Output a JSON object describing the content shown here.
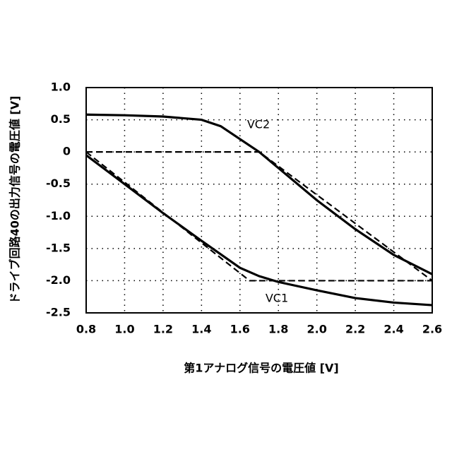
{
  "chart_data": {
    "type": "line",
    "x_label": "第1アナログ信号の電圧値 [V]",
    "y_label": "ドライブ回路40の出力信号の電圧値 [V]",
    "xlim": [
      0.8,
      2.6
    ],
    "xticks": [
      0.8,
      {
        "value": 1.0,
        "label": "1.0"
      },
      1.2,
      1.4,
      1.6,
      1.8,
      {
        "value": 2.0,
        "label": "2.0"
      },
      2.2,
      2.4,
      2.6
    ],
    "ylim": [
      -2.5,
      1.0
    ],
    "yticks": [
      {
        "value": 1.0,
        "label": "1.0"
      },
      0.5,
      0,
      -0.5,
      {
        "value": -1.0,
        "label": "-1.0"
      },
      -1.5,
      {
        "value": -2.0,
        "label": "-2.0"
      },
      -2.5
    ],
    "grid": true,
    "series": [
      {
        "name": "VC1",
        "color": "#000000",
        "dashed": false,
        "x": [
          0.8,
          1.0,
          1.2,
          1.4,
          1.6,
          1.7,
          1.8,
          2.0,
          2.2,
          2.4,
          2.6
        ],
        "values": [
          -0.05,
          -0.5,
          -0.95,
          -1.38,
          -1.8,
          -1.93,
          -2.02,
          -2.15,
          -2.27,
          -2.34,
          -2.38
        ]
      },
      {
        "name": "VC2",
        "color": "#000000",
        "dashed": false,
        "x": [
          0.8,
          1.0,
          1.2,
          1.4,
          1.5,
          1.6,
          1.7,
          1.8,
          2.0,
          2.2,
          2.4,
          2.6
        ],
        "values": [
          0.58,
          0.57,
          0.55,
          0.5,
          0.4,
          0.2,
          0.0,
          -0.25,
          -0.75,
          -1.2,
          -1.6,
          -1.9
        ]
      },
      {
        "color": "#000000",
        "dashed": true,
        "x": [
          0.8,
          1.65,
          2.6
        ],
        "values": [
          0.0,
          -2.0,
          -2.0
        ]
      },
      {
        "color": "#000000",
        "dashed": true,
        "x": [
          0.8,
          1.7,
          2.6
        ],
        "values": [
          0.0,
          0.0,
          -2.0
        ]
      }
    ]
  }
}
